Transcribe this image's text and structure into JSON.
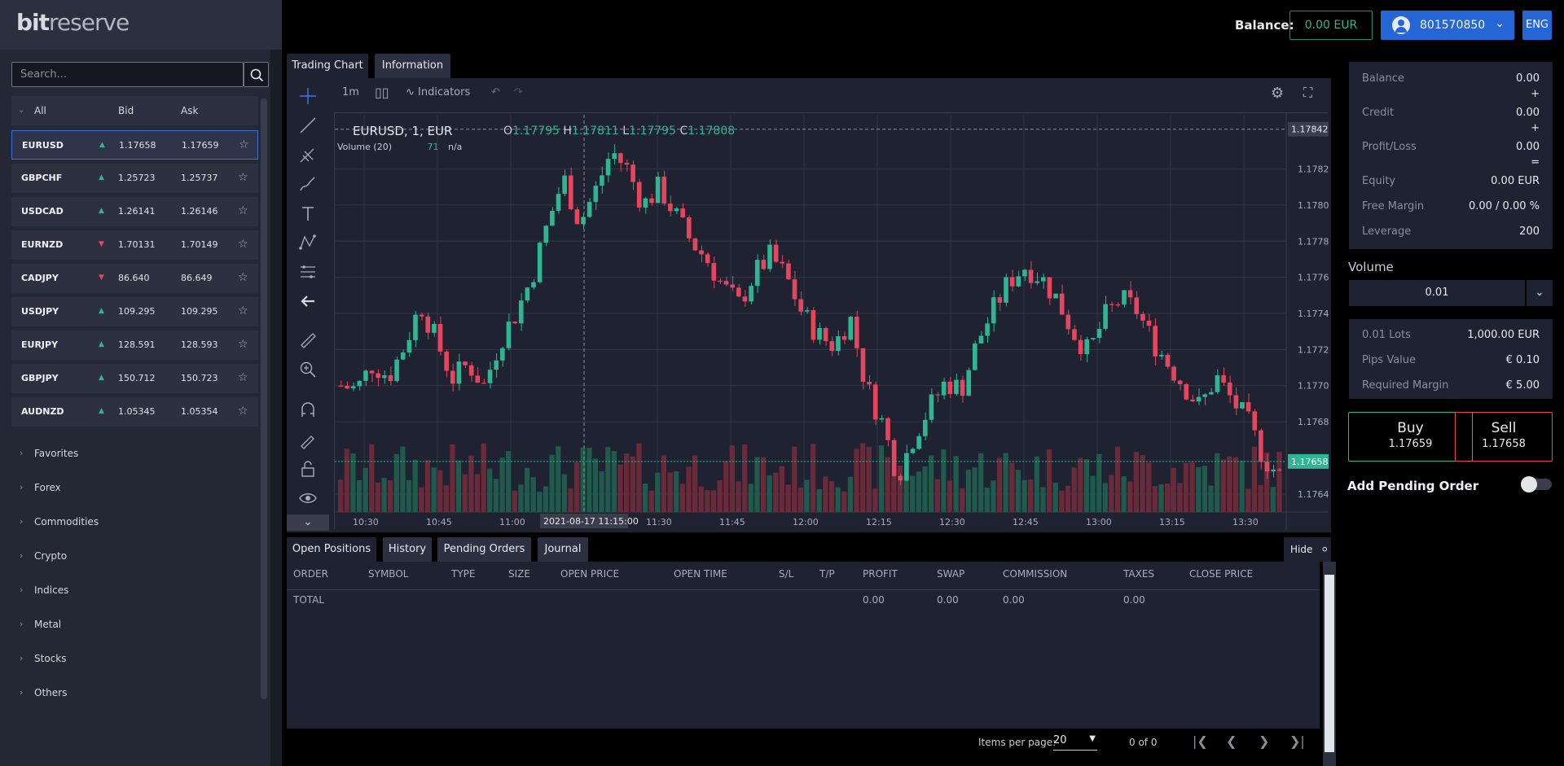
{
  "header": {
    "logo_bold": "bit",
    "logo_light": "reserve",
    "balance_label": "Balance:",
    "balance_value": "0.00 EUR",
    "account_id": "801570850",
    "language": "ENG"
  },
  "sidebar": {
    "search_placeholder": "Search...",
    "list_header": {
      "all": "All",
      "bid": "Bid",
      "ask": "Ask"
    },
    "symbols": [
      {
        "symbol": "EURUSD",
        "direction": "up",
        "bid": "1.17658",
        "ask": "1.17659"
      },
      {
        "symbol": "GBPCHF",
        "direction": "up",
        "bid": "1.25723",
        "ask": "1.25737"
      },
      {
        "symbol": "USDCAD",
        "direction": "up",
        "bid": "1.26141",
        "ask": "1.26146"
      },
      {
        "symbol": "EURNZD",
        "direction": "down",
        "bid": "1.70131",
        "ask": "1.70149"
      },
      {
        "symbol": "CADJPY",
        "direction": "down",
        "bid": "86.640",
        "ask": "86.649"
      },
      {
        "symbol": "USDJPY",
        "direction": "up",
        "bid": "109.295",
        "ask": "109.295"
      },
      {
        "symbol": "EURJPY",
        "direction": "up",
        "bid": "128.591",
        "ask": "128.593"
      },
      {
        "symbol": "GBPJPY",
        "direction": "up",
        "bid": "150.712",
        "ask": "150.723"
      },
      {
        "symbol": "AUDNZD",
        "direction": "up",
        "bid": "1.05345",
        "ask": "1.05354"
      }
    ],
    "categories": [
      "Favorites",
      "Forex",
      "Commodities",
      "Crypto",
      "Indices",
      "Metal",
      "Stocks",
      "Others"
    ]
  },
  "center_tabs": [
    "Trading Chart",
    "Information"
  ],
  "chart_toolbar": {
    "interval": "1m",
    "indicators": "Indicators"
  },
  "chart": {
    "title": "EURUSD, 1, EUR",
    "open_label": "O",
    "open": "1.17795",
    "high_label": "H",
    "high": "1.17811",
    "low_label": "L",
    "low": "1.17795",
    "close_label": "C",
    "close": "1.17808",
    "volume_legend": "Volume (20)",
    "volume_value": "71",
    "volume_na": "n/a",
    "crosshair_time": "2021-08-17 11:15:00",
    "current_price_label": "1.17658",
    "crosshair_price_label": "1.17842"
  },
  "chart_data": {
    "type": "candlestick",
    "price_axis": [
      "1.17820",
      "1.17800",
      "1.17780",
      "1.17760",
      "1.17740",
      "1.17720",
      "1.17700",
      "1.17680",
      "1.17640"
    ],
    "time_axis": [
      "10:30",
      "10:45",
      "11:00",
      "11:30",
      "11:45",
      "12:00",
      "12:15",
      "12:30",
      "12:45",
      "13:00",
      "13:15",
      "13:30"
    ],
    "ylim": [
      1.1763,
      1.1785
    ],
    "close_path": [
      1.177,
      1.17698,
      1.17712,
      1.17705,
      1.17722,
      1.17745,
      1.17725,
      1.17704,
      1.17712,
      1.177,
      1.17725,
      1.1774,
      1.1776,
      1.1779,
      1.17815,
      1.1779,
      1.17808,
      1.1783,
      1.1782,
      1.178,
      1.1781,
      1.17795,
      1.1778,
      1.1777,
      1.17755,
      1.17745,
      1.17762,
      1.17772,
      1.1776,
      1.1774,
      1.17728,
      1.17722,
      1.17738,
      1.177,
      1.1768,
      1.1765,
      1.17672,
      1.17688,
      1.17702,
      1.17698,
      1.17724,
      1.17742,
      1.17758,
      1.17766,
      1.1776,
      1.17748,
      1.1773,
      1.17718,
      1.17738,
      1.17748,
      1.17742,
      1.17725,
      1.17712,
      1.177,
      1.17688,
      1.17705,
      1.17692,
      1.1768,
      1.1766,
      1.1765
    ]
  },
  "bottom_tabs": [
    "Open Positions",
    "History",
    "Pending Orders",
    "Journal"
  ],
  "hide_label": "Hide",
  "positions_table": {
    "columns": [
      "ORDER",
      "SYMBOL",
      "TYPE",
      "SIZE",
      "OPEN PRICE",
      "OPEN TIME",
      "S/L",
      "T/P",
      "PROFIT",
      "SWAP",
      "COMMISSION",
      "TAXES",
      "CLOSE PRICE"
    ],
    "total_row": {
      "label": "TOTAL",
      "profit": "0.00",
      "swap": "0.00",
      "commission": "0.00",
      "taxes": "0.00"
    }
  },
  "pager": {
    "items_label": "Items per page:",
    "per_page": "20",
    "range": "0 of 0"
  },
  "account_panel": {
    "rows": [
      {
        "k": "Balance",
        "v": "0.00"
      },
      {
        "k": "Credit",
        "v": "0.00"
      },
      {
        "k": "Profit/Loss",
        "v": "0.00"
      },
      {
        "k": "Equity",
        "v": "0.00 EUR"
      },
      {
        "k": "Free Margin",
        "v": "0.00 / 0.00 %"
      },
      {
        "k": "Leverage",
        "v": "200"
      }
    ],
    "plus1": "+",
    "plus2": "+",
    "equals": "="
  },
  "volume_section": {
    "label": "Volume",
    "value": "0.01"
  },
  "info_rows": [
    {
      "k": "0.01 Lots",
      "v": "1,000.00 EUR"
    },
    {
      "k": "Pips Value",
      "v": "€ 0.10"
    },
    {
      "k": "Required Margin",
      "v": "€ 5.00"
    }
  ],
  "trade": {
    "buy_label": "Buy",
    "buy_price": "1.17659",
    "sell_label": "Sell",
    "sell_price": "1.17658"
  },
  "pending_order_label": "Add Pending Order",
  "colors": {
    "up": "#2fb592",
    "down": "#e5455d",
    "accent": "#2466d6"
  }
}
